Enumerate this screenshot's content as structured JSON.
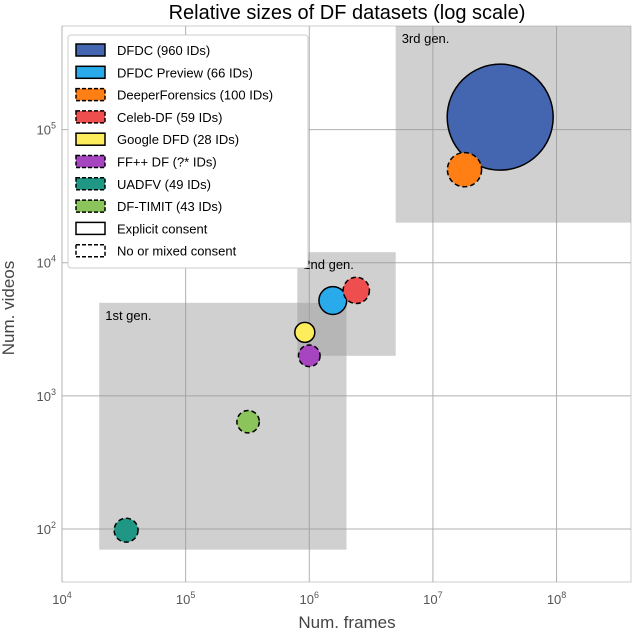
{
  "chart_data": {
    "type": "scatter",
    "title": "Relative sizes of DF datasets (log scale)",
    "xlabel": "Num. frames",
    "ylabel": "Num. videos",
    "x_scale": "log",
    "y_scale": "log",
    "xlim": [
      10000,
      400000000
    ],
    "ylim": [
      40,
      600000
    ],
    "grid": true,
    "x_ticks": [
      {
        "value": 10000,
        "base": "10",
        "exp": "4"
      },
      {
        "value": 100000,
        "base": "10",
        "exp": "5"
      },
      {
        "value": 1000000,
        "base": "10",
        "exp": "6"
      },
      {
        "value": 10000000,
        "base": "10",
        "exp": "7"
      },
      {
        "value": 100000000,
        "base": "10",
        "exp": "8"
      }
    ],
    "y_ticks": [
      {
        "value": 100,
        "base": "10",
        "exp": "2"
      },
      {
        "value": 1000,
        "base": "10",
        "exp": "3"
      },
      {
        "value": 10000,
        "base": "10",
        "exp": "4"
      },
      {
        "value": 100000,
        "base": "10",
        "exp": "5"
      }
    ],
    "generations": [
      {
        "label": "1st gen.",
        "x_range": [
          20000,
          2000000
        ],
        "y_range": [
          70,
          5000
        ]
      },
      {
        "label": "2nd gen.",
        "x_range": [
          800000,
          5000000
        ],
        "y_range": [
          2000,
          12000
        ]
      },
      {
        "label": "3rd gen.",
        "x_range": [
          5000000,
          400000000
        ],
        "y_range": [
          20000,
          600000
        ]
      }
    ],
    "series": [
      {
        "name": "DFDC (960 IDs)",
        "color": "#4466b0",
        "consent": "explicit",
        "frames": 35000000,
        "videos": 124000
      },
      {
        "name": "DFDC Preview (66 IDs)",
        "color": "#29aaea",
        "consent": "explicit",
        "frames": 1550000,
        "videos": 5200
      },
      {
        "name": "DeeperForensics (100 IDs)",
        "color": "#ff7f14",
        "consent": "mixed",
        "frames": 18000000,
        "videos": 50000
      },
      {
        "name": "Celeb-DF (59 IDs)",
        "color": "#ef4e4e",
        "consent": "mixed",
        "frames": 2400000,
        "videos": 6200
      },
      {
        "name": "Google DFD (28 IDs)",
        "color": "#fdec5c",
        "consent": "explicit",
        "frames": 920000,
        "videos": 3000
      },
      {
        "name": "FF++ DF (?* IDs)",
        "color": "#a744c0",
        "consent": "mixed",
        "frames": 1000000,
        "videos": 2000
      },
      {
        "name": "UADFV (49 IDs)",
        "color": "#1f9784",
        "consent": "mixed",
        "frames": 33000,
        "videos": 98
      },
      {
        "name": "DF-TIMIT (43 IDs)",
        "color": "#8ac45a",
        "consent": "mixed",
        "frames": 320000,
        "videos": 640
      }
    ],
    "consent_legend": [
      {
        "label": "Explicit consent",
        "style": "solid"
      },
      {
        "label": "No or mixed consent",
        "style": "dashed"
      }
    ],
    "legend_position": "top-left"
  }
}
